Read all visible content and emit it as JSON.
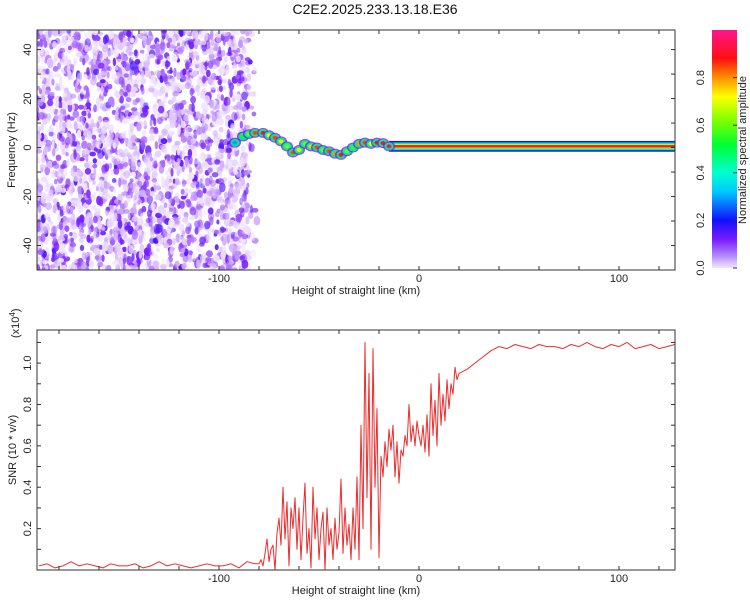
{
  "title": "C2E2.2025.233.13.18.E36",
  "chart_data": [
    {
      "type": "heatmap",
      "title": "C2E2.2025.233.13.18.E36",
      "xlabel": "Height of straight line (km)",
      "ylabel": "Frequency (Hz)",
      "xlim": [
        -191,
        128
      ],
      "ylim": [
        -50,
        48
      ],
      "xticks": [
        -100,
        0,
        100
      ],
      "yticks": [
        -40,
        -20,
        0,
        20,
        40
      ],
      "noise_region_x": [
        -191,
        -85
      ],
      "ridge": {
        "x": [
          -92,
          -88,
          -85,
          -82,
          -78,
          -75,
          -72,
          -69,
          -66,
          -63,
          -60,
          -57,
          -54,
          -51,
          -48,
          -45,
          -42,
          -39,
          -36,
          -33,
          -30,
          -27,
          -24,
          -21,
          -18,
          -15
        ],
        "freq": [
          2,
          4.5,
          5.5,
          6,
          6,
          5,
          4,
          2.5,
          0.5,
          -2,
          -1,
          1.5,
          0.5,
          0,
          -1,
          -1.5,
          -2.5,
          -3,
          -1.5,
          0,
          1.5,
          2,
          1.5,
          2,
          1.8,
          0.5
        ],
        "amplitude": [
          0.3,
          0.5,
          0.6,
          0.85,
          0.9,
          0.7,
          0.85,
          0.7,
          0.6,
          0.85,
          0.7,
          0.6,
          0.75,
          0.85,
          0.6,
          0.85,
          0.8,
          0.9,
          0.6,
          0.55,
          0.8,
          0.85,
          0.7,
          0.9,
          0.9,
          0.95
        ]
      },
      "tone": {
        "x_from": -15,
        "x_to": 128,
        "freq": 0.5,
        "amplitude": 0.95
      },
      "colorbar": {
        "label": "Normalized spectral amplitude",
        "range": [
          0,
          1
        ],
        "ticks": [
          "0.0",
          "0.2",
          "0.4",
          "0.6",
          "0.8"
        ]
      }
    },
    {
      "type": "line",
      "xlabel": "Height of straight line (km)",
      "ylabel": "SNR (10 * v/v)",
      "multiplier_label": "(x10",
      "multiplier_exp": "4",
      "multiplier_close": ")",
      "xlim": [
        -191,
        128
      ],
      "ylim": [
        0,
        1.16
      ],
      "xticks": [
        -100,
        0,
        100
      ],
      "yticks": [
        "0.2",
        "0.4",
        "0.6",
        "0.8",
        "1.0"
      ],
      "color": "#ee2c2c",
      "segments": [
        {
          "x_start": -190,
          "x_step": 4,
          "y": [
            0.02,
            0.03,
            0.01,
            0.02,
            0.04,
            0.02,
            0.03,
            0.02,
            0.01,
            0.03,
            0.02,
            0.02,
            0.03,
            0.01,
            0.02,
            0.04,
            0.02,
            0.03,
            0.02,
            0.01,
            0.02,
            0.03,
            0.02,
            0.02,
            0.03,
            0.01,
            0.04,
            0.03
          ]
        },
        {
          "x_start": -80,
          "x_step": 1,
          "y": [
            0.03,
            0.05,
            0.02,
            0.08,
            0.15,
            0.04,
            0.1,
            0.12,
            0.0,
            0.18,
            0.25,
            0.12,
            0.4,
            0.15,
            0.33,
            0.02,
            0.3,
            0.2,
            0.35,
            0.1,
            0.3,
            0.05,
            0.25,
            0.42,
            0.08,
            0.2,
            0.01,
            0.4,
            0.15,
            0.3,
            0.05,
            0.2,
            0.28,
            0.0,
            0.3,
            0.12,
            0.2,
            0.05,
            0.25,
            0.1,
            0.18,
            0.44,
            0.08,
            0.3,
            0.12,
            0.22,
            0.05,
            0.3,
            0.1,
            0.45,
            0.05,
            0.7,
            0.2,
            1.1,
            0.35,
            0.95,
            0.1,
            1.07,
            0.4,
            0.78,
            0.06,
            0.55,
            0.45,
            0.62,
            0.5,
            0.68,
            0.58,
            0.7,
            0.45,
            0.62,
            0.42,
            0.58,
            0.55,
            0.65,
            0.6,
            0.8,
            0.62,
            0.7,
            0.6,
            0.72,
            0.65,
            0.6,
            0.7,
            0.57,
            0.75,
            0.55,
            0.9,
            0.65,
            0.82,
            0.6,
            0.95,
            0.7,
            0.85,
            0.72,
            0.92,
            0.78,
            0.9,
            0.85,
            0.98,
            0.92,
            0.95
          ]
        },
        {
          "x_start": 24,
          "x_step": 4,
          "y": [
            0.97,
            1.0,
            1.03,
            1.06,
            1.08,
            1.07,
            1.09,
            1.08,
            1.07,
            1.09,
            1.08,
            1.08,
            1.07,
            1.09,
            1.08,
            1.1,
            1.08,
            1.07,
            1.09,
            1.08,
            1.1,
            1.07,
            1.08,
            1.09,
            1.07,
            1.08,
            1.09
          ]
        }
      ]
    }
  ]
}
